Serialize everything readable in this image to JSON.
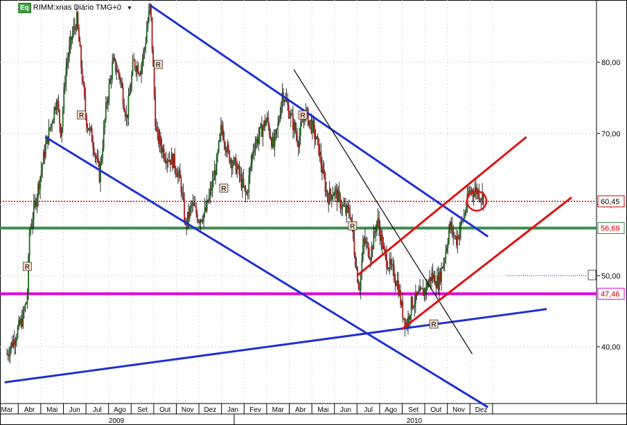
{
  "header": {
    "badge": "Eq",
    "title": "RIMM:xnas Diário TMG+0",
    "dropdown_icon": "chevron-down-icon"
  },
  "chart_data": {
    "type": "candlestick",
    "x_months": [
      "Mar",
      "Abr",
      "Mai",
      "Jun",
      "Jul",
      "Ago",
      "Set",
      "Out",
      "Nov",
      "Dez",
      "Jan",
      "Fev",
      "Mar",
      "Abr",
      "Mai",
      "Jun",
      "Jul",
      "Ago",
      "Set",
      "Out",
      "Nov",
      "Dez"
    ],
    "years": [
      "2009",
      "2010"
    ],
    "y_ticks": [
      40,
      50,
      60,
      70,
      80
    ],
    "y_tick_labels": [
      "40,00",
      "50,00",
      "60,00",
      "70,00",
      "80,00"
    ],
    "ylim": [
      31,
      89
    ],
    "price_path": [
      [
        0,
        39
      ],
      [
        0.3,
        41
      ],
      [
        0.7,
        44
      ],
      [
        0.9,
        47
      ],
      [
        1.0,
        56
      ],
      [
        1.3,
        61
      ],
      [
        1.7,
        68
      ],
      [
        2.0,
        72
      ],
      [
        2.2,
        75
      ],
      [
        2.4,
        70
      ],
      [
        2.6,
        79
      ],
      [
        2.9,
        84
      ],
      [
        3.1,
        86
      ],
      [
        3.3,
        79
      ],
      [
        3.5,
        72
      ],
      [
        3.8,
        69
      ],
      [
        4.1,
        64
      ],
      [
        4.4,
        74
      ],
      [
        4.7,
        80
      ],
      [
        5.0,
        78
      ],
      [
        5.3,
        72
      ],
      [
        5.6,
        80
      ],
      [
        5.9,
        79
      ],
      [
        6.1,
        82
      ],
      [
        6.2,
        85
      ],
      [
        6.35,
        88
      ],
      [
        6.6,
        70
      ],
      [
        7.0,
        67
      ],
      [
        7.4,
        66
      ],
      [
        7.7,
        63
      ],
      [
        7.9,
        57
      ],
      [
        8.2,
        60
      ],
      [
        8.5,
        58
      ],
      [
        8.8,
        59
      ],
      [
        9.1,
        63
      ],
      [
        9.3,
        66
      ],
      [
        9.5,
        71
      ],
      [
        9.8,
        67
      ],
      [
        10.2,
        65
      ],
      [
        10.6,
        61
      ],
      [
        10.9,
        68
      ],
      [
        11.2,
        70
      ],
      [
        11.5,
        72
      ],
      [
        11.8,
        68
      ],
      [
        12.0,
        71
      ],
      [
        12.2,
        76
      ],
      [
        12.4,
        74
      ],
      [
        12.7,
        71
      ],
      [
        12.9,
        69
      ],
      [
        13.2,
        73
      ],
      [
        13.5,
        71
      ],
      [
        13.8,
        68
      ],
      [
        14.0,
        64
      ],
      [
        14.2,
        61
      ],
      [
        14.5,
        62
      ],
      [
        14.8,
        60
      ],
      [
        15.0,
        59
      ],
      [
        15.2,
        59
      ],
      [
        15.4,
        53
      ],
      [
        15.6,
        48
      ],
      [
        15.8,
        55
      ],
      [
        16.1,
        53
      ],
      [
        16.4,
        58
      ],
      [
        16.7,
        53
      ],
      [
        17.0,
        51
      ],
      [
        17.3,
        49
      ],
      [
        17.5,
        45
      ],
      [
        17.7,
        43
      ],
      [
        17.9,
        46
      ],
      [
        18.2,
        47
      ],
      [
        18.5,
        48
      ],
      [
        18.8,
        50
      ],
      [
        19.1,
        49
      ],
      [
        19.4,
        53
      ],
      [
        19.6,
        57
      ],
      [
        19.9,
        55
      ],
      [
        20.2,
        58
      ],
      [
        20.5,
        62
      ],
      [
        20.8,
        62
      ],
      [
        21.1,
        61
      ]
    ],
    "horizontal_levels": [
      {
        "value": 60.45,
        "label": "60,45",
        "color": "#cc0000",
        "style": "dotted"
      },
      {
        "value": 56.69,
        "label": "56,69",
        "color": "#3b8a4b",
        "style": "solid"
      },
      {
        "value": 47.46,
        "label": "47,46",
        "color": "#e000e0",
        "style": "solid"
      }
    ],
    "trendlines": [
      {
        "color": "blue",
        "from": [
          6.35,
          88
        ],
        "to": [
          21.3,
          55.5
        ]
      },
      {
        "color": "blue",
        "from": [
          1.7,
          69.5
        ],
        "to": [
          21.3,
          31.5
        ]
      },
      {
        "color": "blue",
        "from": [
          -0.1,
          35
        ],
        "to": [
          23.9,
          45.3
        ]
      },
      {
        "color": "black",
        "from": [
          12.7,
          79
        ],
        "to": [
          20.6,
          39
        ]
      },
      {
        "color": "red",
        "from": [
          15.5,
          50
        ],
        "to": [
          23.0,
          69.5
        ]
      },
      {
        "color": "red",
        "from": [
          17.5,
          42.5
        ],
        "to": [
          25.0,
          61
        ]
      }
    ],
    "markers": [
      {
        "label": "R",
        "x": 0.9,
        "y": 51.3
      },
      {
        "label": "R",
        "x": 3.3,
        "y": 72.6
      },
      {
        "label": "R",
        "x": 6.7,
        "y": 79.7
      },
      {
        "label": "R",
        "x": 9.6,
        "y": 62.3
      },
      {
        "label": "R",
        "x": 13.1,
        "y": 72.6
      },
      {
        "label": "R",
        "x": 15.3,
        "y": 57.0
      },
      {
        "label": "R",
        "x": 18.9,
        "y": 43.2
      }
    ],
    "annotations": [
      {
        "shape": "circle",
        "color": "red",
        "x": 20.8,
        "y": 60.5
      }
    ]
  }
}
